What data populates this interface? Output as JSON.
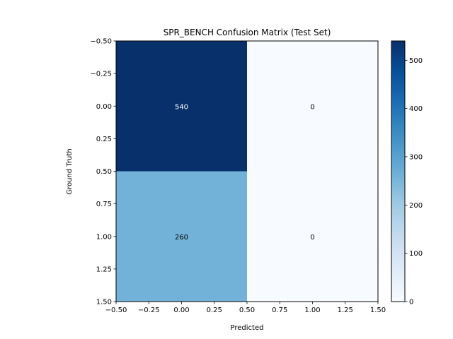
{
  "chart_data": {
    "type": "heatmap",
    "title": "SPR_BENCH Confusion Matrix (Test Set)",
    "xlabel": "Predicted",
    "ylabel": "Ground Truth",
    "xlim": [
      -0.5,
      1.5
    ],
    "ylim": [
      1.5,
      -0.5
    ],
    "x_ticks": [
      "−0.50",
      "−0.25",
      "0.00",
      "0.25",
      "0.50",
      "0.75",
      "1.00",
      "1.25",
      "1.50"
    ],
    "y_ticks": [
      "−0.50",
      "−0.25",
      "0.00",
      "0.25",
      "0.50",
      "0.75",
      "1.00",
      "1.25",
      "1.50"
    ],
    "tick_values": [
      -0.5,
      -0.25,
      0,
      0.25,
      0.5,
      0.75,
      1.0,
      1.25,
      1.5
    ],
    "matrix": [
      [
        540,
        0
      ],
      [
        260,
        0
      ]
    ],
    "cell_labels": [
      [
        "540",
        "0"
      ],
      [
        "260",
        "0"
      ]
    ],
    "colormap": "Blues",
    "colorbar": {
      "min": 0,
      "max": 540,
      "ticks": [
        0,
        100,
        200,
        300,
        400,
        500
      ],
      "tick_labels": [
        "0",
        "100",
        "200",
        "300",
        "400",
        "500"
      ]
    },
    "grid": false
  }
}
